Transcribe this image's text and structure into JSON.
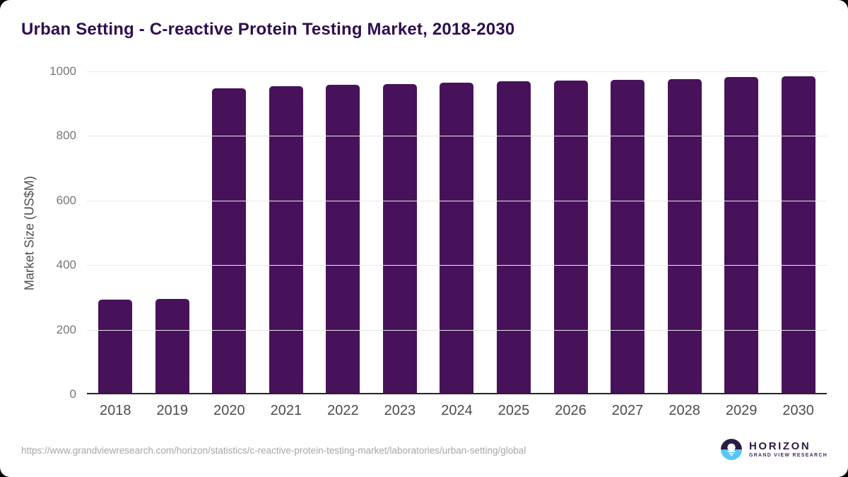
{
  "page": {
    "source_url": "https://www.grandviewresearch.com/horizon/statistics/c-reactive-protein-testing-market/laboratories/urban-setting/global"
  },
  "chart_data": {
    "type": "bar",
    "title": "Urban Setting - C-reactive Protein Testing Market, 2018-2030",
    "categories": [
      "2018",
      "2019",
      "2020",
      "2021",
      "2022",
      "2023",
      "2024",
      "2025",
      "2026",
      "2027",
      "2028",
      "2029",
      "2030"
    ],
    "values": [
      288,
      292,
      944,
      949,
      953,
      956,
      961,
      964,
      967,
      969,
      972,
      978,
      981
    ],
    "xlabel": "",
    "ylabel": "Market Size (US$M)",
    "ylim": [
      0,
      1000
    ],
    "yticks": [
      0,
      200,
      400,
      600,
      800,
      1000
    ],
    "grid": true,
    "legend": false,
    "bar_color": "#47125a",
    "gridline_color": "#e7e7e7",
    "axis_line_color": "#262626"
  },
  "branding": {
    "logo_wordmark": "HORIZON",
    "logo_subtext": "GRAND VIEW RESEARCH",
    "logo_dark_color": "#2e1a47",
    "logo_blue_color": "#57c7f2"
  },
  "colors": {
    "title_text": "#2f0e4e",
    "y_tick_text": "#767676",
    "x_tick_text": "#4c4c4c",
    "url_text": "#a6a6a6",
    "card_background": "#ffffff"
  }
}
